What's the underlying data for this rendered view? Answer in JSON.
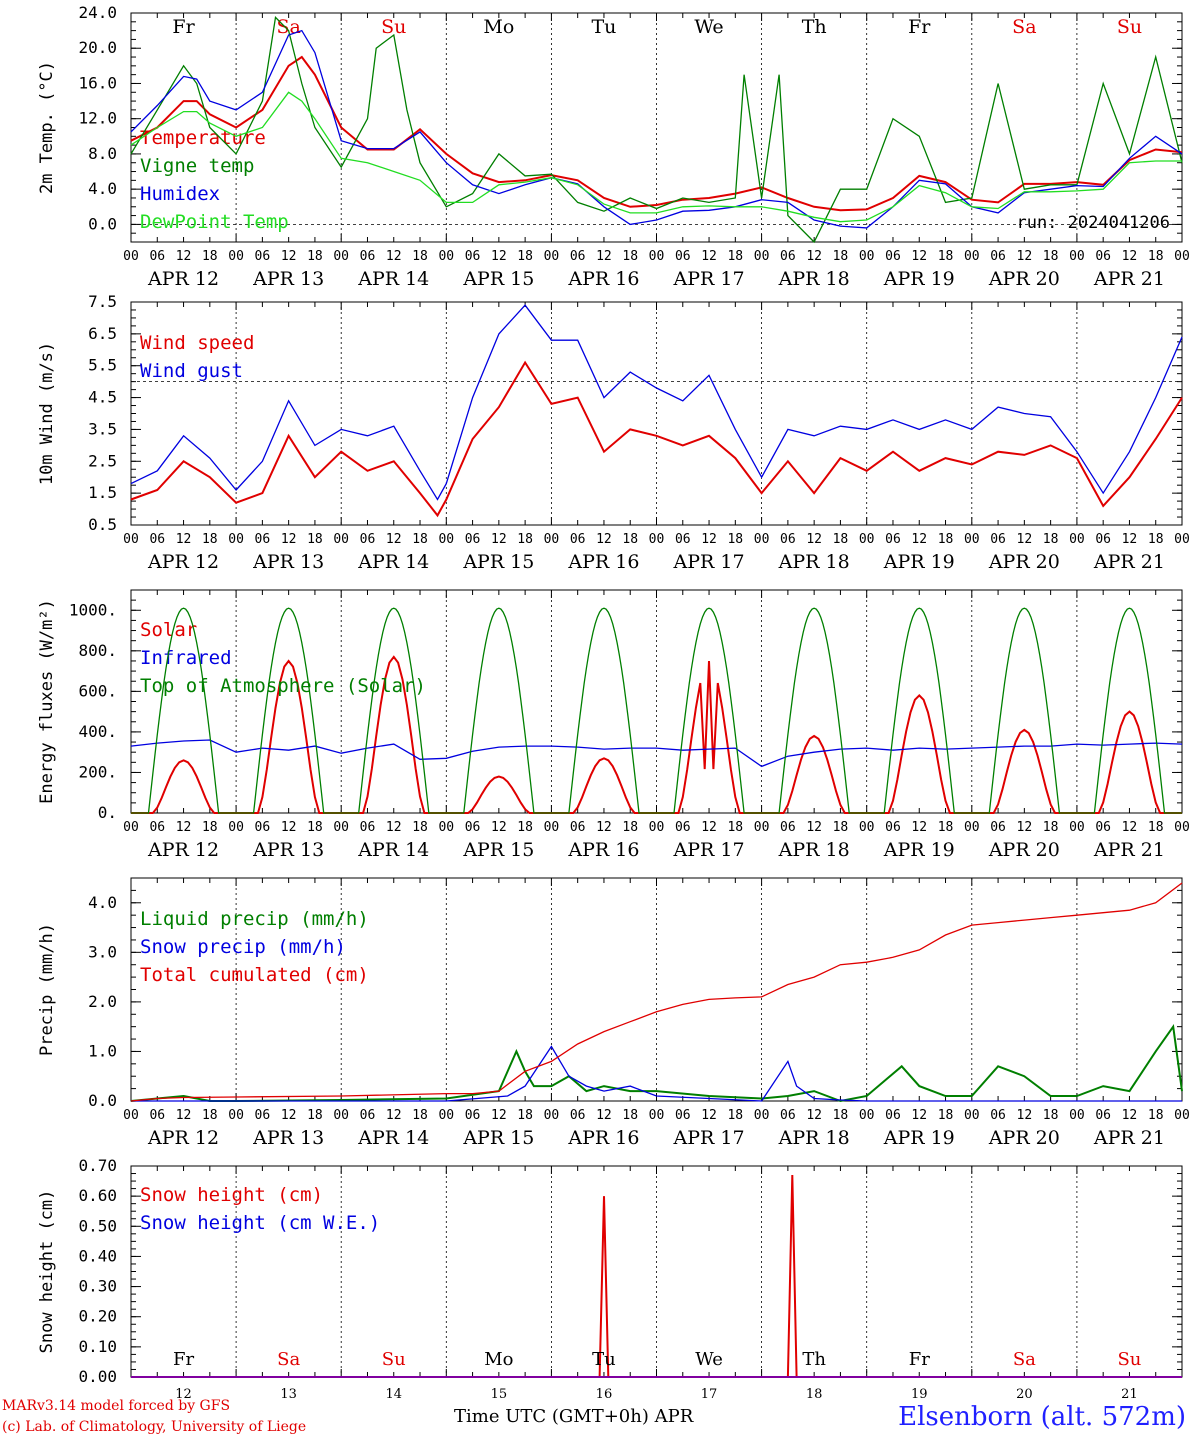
{
  "footer": {
    "model": "MARv3.14 model forced by GFS",
    "lab": "(c) Lab. of Climatology, University of Liege",
    "xtitle": "Time UTC (GMT+0h) APR",
    "station": "Elsenborn (alt. 572m)"
  },
  "colors": {
    "red": "#e00000",
    "green": "#007f00",
    "blue": "#0000e0",
    "lightgreen": "#22dd22",
    "purple": "#8000a0"
  },
  "chart_data": [
    {
      "type": "line",
      "ylabel": "2m Temp. (°C)",
      "ylim": [
        -2,
        24
      ],
      "yticks": [
        "24.0",
        "20.0",
        "16.0",
        "12.0",
        "8.0",
        "4.0",
        "0.0"
      ],
      "ytick_values": [
        24,
        20,
        16,
        12,
        8,
        4,
        0
      ],
      "ref_line": 0,
      "run_label": "run: 2024041206",
      "days": [
        "Fr",
        "Sa",
        "Su",
        "Mo",
        "Tu",
        "We",
        "Th",
        "Fr",
        "Sa",
        "Su"
      ],
      "day_dates": [
        "APR 12",
        "APR 13",
        "APR 14",
        "APR 15",
        "APR 16",
        "APR 17",
        "APR 18",
        "APR 19",
        "APR 20",
        "APR 21"
      ],
      "hour_ticks": [
        "00",
        "06",
        "12",
        "18"
      ],
      "series": [
        {
          "name": "Temperature",
          "color": "#e00000",
          "x": [
            0,
            6,
            12,
            15,
            18,
            24,
            30,
            36,
            39,
            42,
            48,
            54,
            60,
            66,
            72,
            78,
            84,
            90,
            96,
            102,
            108,
            114,
            120,
            126,
            132,
            138,
            144,
            150,
            156,
            162,
            168,
            174,
            180,
            186,
            192,
            198,
            204,
            210,
            216,
            222,
            228,
            234,
            240
          ],
          "y": [
            9.5,
            11,
            14,
            14,
            12.5,
            11,
            13,
            18,
            19,
            17,
            11,
            8.5,
            8.5,
            10.8,
            8,
            5.8,
            4.8,
            5,
            5.6,
            5,
            3,
            2,
            2.2,
            2.8,
            3,
            3.5,
            4.2,
            3,
            2,
            1.6,
            1.7,
            3,
            5.5,
            4.8,
            2.8,
            2.5,
            4.6,
            4.6,
            4.8,
            4.5,
            7.3,
            8.5,
            8.2
          ]
        },
        {
          "name": "Vigne temp",
          "color": "#007f00",
          "x": [
            0,
            6,
            12,
            15,
            18,
            24,
            30,
            33,
            36,
            39,
            42,
            48,
            54,
            56,
            60,
            63,
            66,
            72,
            78,
            84,
            90,
            96,
            102,
            108,
            114,
            120,
            126,
            132,
            138,
            140,
            144,
            148,
            150,
            156,
            162,
            168,
            174,
            180,
            186,
            192,
            198,
            204,
            210,
            216,
            222,
            228,
            234,
            240
          ],
          "y": [
            8,
            13,
            18,
            16,
            11,
            8,
            14,
            23.5,
            22,
            16,
            11,
            6.5,
            12,
            20,
            21.5,
            13,
            7,
            2,
            3.5,
            8,
            5.5,
            5.7,
            2.5,
            1.5,
            3,
            1.8,
            3,
            2.5,
            3,
            17,
            3,
            17,
            1,
            -2,
            4,
            4,
            12,
            10,
            2.5,
            3,
            16,
            4,
            4.5,
            4.5,
            16,
            8,
            19,
            7
          ]
        },
        {
          "name": "Humidex",
          "color": "#0000e0",
          "x": [
            0,
            6,
            12,
            15,
            18,
            24,
            30,
            36,
            39,
            42,
            48,
            54,
            60,
            66,
            72,
            78,
            84,
            90,
            96,
            102,
            108,
            114,
            120,
            126,
            132,
            138,
            144,
            150,
            156,
            162,
            168,
            174,
            180,
            186,
            192,
            198,
            204,
            210,
            216,
            222,
            228,
            234,
            240
          ],
          "y": [
            10.5,
            13.5,
            16.8,
            16.5,
            14,
            13,
            15,
            21.5,
            22,
            19.5,
            9.5,
            8.6,
            8.6,
            10.5,
            7,
            4.5,
            3.5,
            4.5,
            5.3,
            4.6,
            2,
            0,
            0.5,
            1.5,
            1.6,
            2,
            2.8,
            2.5,
            0.5,
            -0.2,
            -0.4,
            2,
            5,
            4.6,
            2,
            1.3,
            3.6,
            4,
            4.4,
            4.3,
            7.5,
            10,
            8
          ]
        },
        {
          "name": "DewPoint Temp",
          "color": "#22dd22",
          "x": [
            0,
            6,
            12,
            15,
            18,
            24,
            30,
            36,
            39,
            42,
            48,
            54,
            60,
            66,
            72,
            78,
            84,
            90,
            96,
            102,
            108,
            114,
            120,
            126,
            132,
            138,
            144,
            150,
            156,
            162,
            168,
            174,
            180,
            186,
            192,
            198,
            204,
            210,
            216,
            222,
            228,
            234,
            240
          ],
          "y": [
            9,
            11,
            12.8,
            12.8,
            11.5,
            10,
            11,
            15,
            14,
            12,
            7.5,
            7,
            6,
            5,
            2.5,
            2.5,
            4.5,
            4.8,
            5.3,
            4.5,
            2.3,
            1.3,
            1.3,
            2,
            2.1,
            2,
            2,
            1.5,
            0.8,
            0.3,
            0.5,
            2,
            4.4,
            3.6,
            2,
            1.8,
            3.7,
            3.7,
            3.8,
            4,
            7,
            7.2,
            7.2
          ]
        }
      ]
    },
    {
      "type": "line",
      "ylabel": "10m Wind (m/s)",
      "ylim": [
        0.5,
        7.5
      ],
      "yticks": [
        "7.5",
        "6.5",
        "5.5",
        "4.5",
        "3.5",
        "2.5",
        "1.5",
        "0.5"
      ],
      "ytick_values": [
        7.5,
        6.5,
        5.5,
        4.5,
        3.5,
        2.5,
        1.5,
        0.5
      ],
      "ref_line": 5,
      "day_dates": [
        "APR 12",
        "APR 13",
        "APR 14",
        "APR 15",
        "APR 16",
        "APR 17",
        "APR 18",
        "APR 19",
        "APR 20",
        "APR 21"
      ],
      "hour_ticks": [
        "00",
        "06",
        "12",
        "18"
      ],
      "series": [
        {
          "name": "Wind speed",
          "color": "#e00000",
          "x": [
            0,
            6,
            12,
            18,
            24,
            30,
            36,
            42,
            48,
            54,
            60,
            66,
            70,
            72,
            78,
            84,
            90,
            96,
            102,
            108,
            114,
            120,
            126,
            132,
            138,
            144,
            150,
            156,
            162,
            168,
            174,
            180,
            186,
            192,
            198,
            204,
            210,
            216,
            222,
            228,
            234,
            240
          ],
          "y": [
            1.3,
            1.6,
            2.5,
            2.0,
            1.2,
            1.5,
            3.3,
            2.0,
            2.8,
            2.2,
            2.5,
            1.5,
            0.8,
            1.3,
            3.2,
            4.2,
            5.6,
            4.3,
            4.5,
            2.8,
            3.5,
            3.3,
            3.0,
            3.3,
            2.6,
            1.5,
            2.5,
            1.5,
            2.6,
            2.2,
            2.8,
            2.2,
            2.6,
            2.4,
            2.8,
            2.7,
            3.0,
            2.6,
            1.1,
            2.0,
            3.2,
            4.5
          ]
        },
        {
          "name": "Wind gust",
          "color": "#0000e0",
          "x": [
            0,
            6,
            12,
            18,
            24,
            30,
            36,
            42,
            48,
            54,
            60,
            66,
            70,
            72,
            78,
            84,
            90,
            96,
            102,
            108,
            114,
            120,
            126,
            132,
            138,
            144,
            150,
            156,
            162,
            168,
            174,
            180,
            186,
            192,
            198,
            204,
            210,
            216,
            222,
            228,
            234,
            240
          ],
          "y": [
            1.8,
            2.2,
            3.3,
            2.6,
            1.6,
            2.5,
            4.4,
            3.0,
            3.5,
            3.3,
            3.6,
            2.2,
            1.3,
            1.8,
            4.5,
            6.5,
            7.4,
            6.3,
            6.3,
            4.5,
            5.3,
            4.8,
            4.4,
            5.2,
            3.5,
            2.0,
            3.5,
            3.3,
            3.6,
            3.5,
            3.8,
            3.5,
            3.8,
            3.5,
            4.2,
            4.0,
            3.9,
            2.8,
            1.5,
            2.8,
            4.5,
            6.4
          ]
        }
      ]
    },
    {
      "type": "line",
      "ylabel": "Energy fluxes (W/m²)",
      "ylim": [
        0,
        1100
      ],
      "yticks": [
        "1000.",
        "800.",
        "600.",
        "400.",
        "200.",
        "0."
      ],
      "ytick_values": [
        1000,
        800,
        600,
        400,
        200,
        0
      ],
      "day_dates": [
        "APR 12",
        "APR 13",
        "APR 14",
        "APR 15",
        "APR 16",
        "APR 17",
        "APR 18",
        "APR 19",
        "APR 20",
        "APR 21"
      ],
      "hour_ticks": [
        "00",
        "06",
        "12",
        "18"
      ],
      "series": [
        {
          "name": "Solar",
          "color": "#e00000",
          "solar_peaks": [
            260,
            750,
            770,
            180,
            270,
            750,
            380,
            580,
            410,
            500
          ]
        },
        {
          "name": "Infrared",
          "color": "#0000e0",
          "x": [
            0,
            6,
            12,
            18,
            24,
            30,
            36,
            42,
            48,
            54,
            60,
            66,
            72,
            78,
            84,
            90,
            96,
            102,
            108,
            114,
            120,
            126,
            132,
            138,
            144,
            150,
            156,
            162,
            168,
            174,
            180,
            186,
            192,
            198,
            204,
            210,
            216,
            222,
            228,
            234,
            240
          ],
          "y": [
            330,
            345,
            355,
            360,
            300,
            320,
            310,
            330,
            295,
            320,
            340,
            265,
            270,
            305,
            325,
            330,
            330,
            325,
            315,
            320,
            320,
            310,
            315,
            320,
            230,
            280,
            300,
            315,
            320,
            310,
            320,
            315,
            320,
            325,
            330,
            330,
            340,
            335,
            340,
            345,
            340
          ]
        },
        {
          "name": "Top of Atmosphere (Solar)",
          "color": "#007f00",
          "toa_peak": 1010
        }
      ]
    },
    {
      "type": "line",
      "ylabel": "Precip (mm/h)",
      "ylim": [
        0,
        4.5
      ],
      "yticks": [
        "4.0",
        "3.0",
        "2.0",
        "1.0",
        "0.0"
      ],
      "ytick_values": [
        4,
        3,
        2,
        1,
        0
      ],
      "day_dates": [
        "APR 12",
        "APR 13",
        "APR 14",
        "APR 15",
        "APR 16",
        "APR 17",
        "APR 18",
        "APR 19",
        "APR 20",
        "APR 21"
      ],
      "hour_ticks": [
        "00",
        "06",
        "12",
        "18"
      ],
      "series": [
        {
          "name": "Liquid precip (mm/h)",
          "color": "#007f00",
          "x": [
            0,
            6,
            12,
            18,
            24,
            48,
            72,
            84,
            88,
            90,
            92,
            96,
            100,
            104,
            108,
            114,
            120,
            132,
            144,
            150,
            156,
            162,
            168,
            176,
            180,
            186,
            192,
            198,
            204,
            210,
            216,
            222,
            228,
            234,
            238,
            240
          ],
          "y": [
            0,
            0.05,
            0.1,
            0,
            0,
            0.02,
            0.05,
            0.2,
            1.0,
            0.6,
            0.3,
            0.3,
            0.5,
            0.2,
            0.3,
            0.2,
            0.2,
            0.1,
            0.05,
            0.1,
            0.2,
            0,
            0.1,
            0.7,
            0.3,
            0.1,
            0.1,
            0.7,
            0.5,
            0.1,
            0.1,
            0.3,
            0.2,
            1.0,
            1.5,
            0.2
          ]
        },
        {
          "name": "Snow precip (mm/h)",
          "color": "#0000e0",
          "x": [
            0,
            48,
            72,
            86,
            90,
            96,
            100,
            104,
            108,
            114,
            120,
            132,
            144,
            150,
            152,
            156,
            162,
            168,
            240
          ],
          "y": [
            0,
            0,
            0,
            0.1,
            0.3,
            1.1,
            0.5,
            0.3,
            0.2,
            0.3,
            0.1,
            0.05,
            0,
            0.8,
            0.3,
            0.05,
            0.02,
            0,
            0
          ]
        },
        {
          "name": "Total cumulated (cm)",
          "color": "#e00000",
          "x": [
            0,
            6,
            12,
            24,
            48,
            72,
            78,
            84,
            90,
            96,
            102,
            108,
            114,
            120,
            126,
            132,
            138,
            144,
            150,
            156,
            162,
            168,
            174,
            180,
            186,
            192,
            198,
            204,
            210,
            216,
            222,
            228,
            234,
            240
          ],
          "y": [
            0,
            0.05,
            0.07,
            0.08,
            0.1,
            0.15,
            0.15,
            0.2,
            0.6,
            0.8,
            1.15,
            1.4,
            1.6,
            1.8,
            1.95,
            2.05,
            2.08,
            2.1,
            2.35,
            2.5,
            2.75,
            2.8,
            2.9,
            3.05,
            3.35,
            3.55,
            3.6,
            3.65,
            3.7,
            3.75,
            3.8,
            3.85,
            4.0,
            4.4
          ]
        }
      ]
    },
    {
      "type": "line",
      "ylabel": "Snow height (cm)",
      "ylim": [
        0,
        0.7
      ],
      "yticks": [
        "0.70",
        "0.60",
        "0.50",
        "0.40",
        "0.30",
        "0.20",
        "0.10",
        "0.00"
      ],
      "ytick_values": [
        0.7,
        0.6,
        0.5,
        0.4,
        0.3,
        0.2,
        0.1,
        0
      ],
      "days": [
        "Fr",
        "Sa",
        "Su",
        "Mo",
        "Tu",
        "We",
        "Th",
        "Fr",
        "Sa",
        "Su"
      ],
      "date_numbers": [
        "12",
        "13",
        "14",
        "15",
        "16",
        "17",
        "18",
        "19",
        "20",
        "21"
      ],
      "series": [
        {
          "name": "Snow height (cm)",
          "color": "#e00000",
          "x": [
            0,
            107,
            108,
            109,
            150,
            151,
            152,
            240
          ],
          "y": [
            0,
            0,
            0.6,
            0,
            0,
            0.67,
            0,
            0
          ]
        },
        {
          "name": "Snow height (cm W.E.)",
          "color": "#0000e0",
          "x": [
            0,
            240
          ],
          "y": [
            0,
            0
          ]
        }
      ]
    }
  ]
}
